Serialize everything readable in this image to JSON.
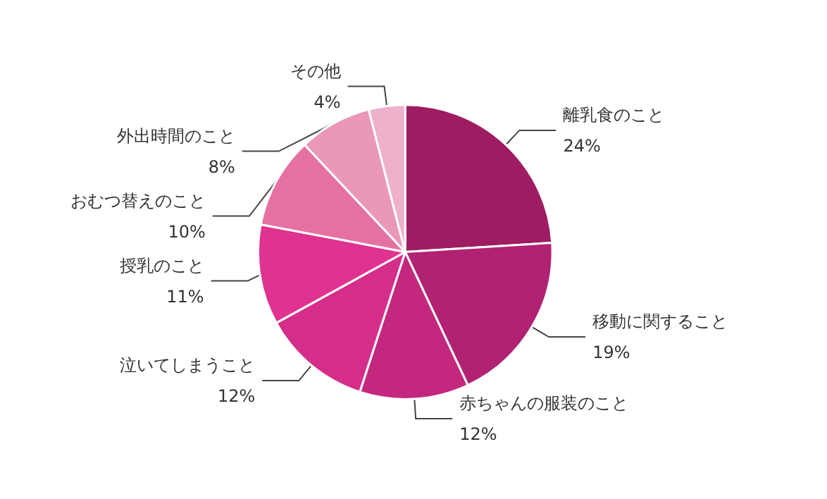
{
  "chart_data": {
    "type": "pie",
    "categories": [
      "離乳食のこと",
      "移動に関すること",
      "赤ちゃんの服装のこと",
      "泣いてしまうこと",
      "授乳のこと",
      "おむつ替えのこと",
      "外出時間のこと",
      "その他"
    ],
    "values": [
      24,
      19,
      12,
      12,
      11,
      10,
      8,
      4
    ],
    "value_labels": [
      "24%",
      "19%",
      "12%",
      "12%",
      "11%",
      "10%",
      "8%",
      "4%"
    ],
    "colors": [
      "#9e1d62",
      "#b12273",
      "#c3287e",
      "#d42d8a",
      "#e03290",
      "#e571a3",
      "#ea97b9",
      "#eeb0cb"
    ],
    "legend": false
  }
}
